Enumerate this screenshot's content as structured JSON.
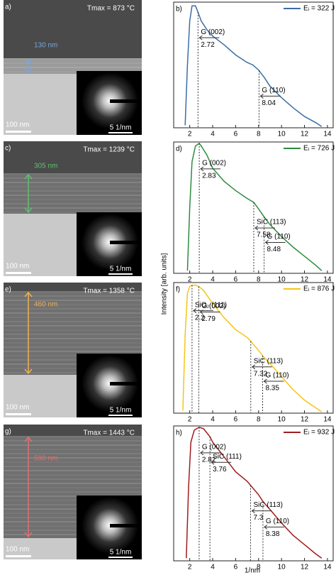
{
  "chart_data": [
    {
      "type": "line",
      "letter": "b)",
      "xlim": [
        0.6,
        14.5
      ],
      "ylim": [
        0,
        1
      ],
      "xticks": [
        2,
        4,
        6,
        8,
        10,
        12,
        14
      ],
      "x": [
        1.6,
        1.8,
        2.0,
        2.2,
        2.5,
        2.72,
        3,
        3.5,
        4,
        5,
        6,
        7,
        7.5,
        8,
        8.5,
        9,
        10,
        11,
        12,
        13,
        13.5
      ],
      "series": [
        {
          "name": "Eᵢ = 322 J",
          "color": "#3a6ea5",
          "values": [
            0.02,
            0.5,
            0.85,
            0.97,
            0.97,
            0.92,
            0.85,
            0.78,
            0.73,
            0.66,
            0.58,
            0.52,
            0.5,
            0.46,
            0.4,
            0.33,
            0.24,
            0.16,
            0.09,
            0.04,
            0.01
          ]
        }
      ],
      "annotations": [
        {
          "label": "G (002)",
          "x": 2.72
        },
        {
          "label": "G (110)",
          "x": 8.04
        }
      ]
    },
    {
      "type": "line",
      "letter": "d)",
      "xlim": [
        0.6,
        14.5
      ],
      "ylim": [
        0,
        1
      ],
      "xticks": [
        2,
        4,
        6,
        8,
        10,
        12,
        14
      ],
      "x": [
        1.8,
        2.0,
        2.2,
        2.5,
        2.83,
        3,
        3.5,
        4,
        5,
        6,
        7,
        7.58,
        8,
        8.48,
        9,
        10,
        11,
        12,
        13,
        13.5
      ],
      "series": [
        {
          "name": "Eᵢ = 726 J",
          "color": "#2e8b3e",
          "values": [
            0.02,
            0.5,
            0.85,
            0.97,
            0.99,
            0.97,
            0.9,
            0.8,
            0.7,
            0.63,
            0.57,
            0.54,
            0.49,
            0.43,
            0.37,
            0.28,
            0.2,
            0.13,
            0.06,
            0.02
          ]
        }
      ],
      "annotations": [
        {
          "label": "G (002)",
          "x": 2.83
        },
        {
          "label": "SiC (113)",
          "x": 7.58
        },
        {
          "label": "G (110)",
          "x": 8.48
        }
      ]
    },
    {
      "type": "line",
      "letter": "f)",
      "xlim": [
        0.6,
        14.5
      ],
      "ylim": [
        0,
        1
      ],
      "xticks": [
        2,
        4,
        6,
        8,
        10,
        12,
        14
      ],
      "x": [
        1.4,
        1.6,
        1.8,
        2.0,
        2.2,
        2.5,
        2.79,
        3.2,
        4,
        5,
        6,
        7,
        7.32,
        8,
        8.35,
        9,
        10,
        11,
        12,
        13,
        13.5
      ],
      "series": [
        {
          "name": "Eᵢ = 876 J",
          "color": "#f5c518",
          "values": [
            0.02,
            0.6,
            0.92,
            0.97,
            0.98,
            0.98,
            0.97,
            0.94,
            0.84,
            0.73,
            0.64,
            0.58,
            0.55,
            0.48,
            0.44,
            0.38,
            0.28,
            0.18,
            0.1,
            0.04,
            0.01
          ]
        }
      ],
      "annotations": [
        {
          "label": "SiO₂ (111)",
          "x": 2.2
        },
        {
          "label": "G (002)",
          "x": 2.79
        },
        {
          "label": "SiC (113)",
          "x": 7.32
        },
        {
          "label": "G (110)",
          "x": 8.35
        }
      ]
    },
    {
      "type": "line",
      "letter": "h)",
      "xlim": [
        0.6,
        14.5
      ],
      "ylim": [
        0,
        1
      ],
      "xticks": [
        2,
        4,
        6,
        8,
        10,
        12,
        14
      ],
      "x": [
        1.7,
        1.9,
        2.1,
        2.4,
        2.82,
        3.2,
        3.76,
        4,
        5,
        6,
        7,
        7.3,
        8,
        8.38,
        9,
        10,
        11,
        12,
        13,
        13.5
      ],
      "series": [
        {
          "name": "Eᵢ = 932 J",
          "color": "#a01c1c",
          "values": [
            0.02,
            0.55,
            0.88,
            0.97,
            0.99,
            0.98,
            0.92,
            0.88,
            0.77,
            0.66,
            0.59,
            0.56,
            0.49,
            0.44,
            0.38,
            0.28,
            0.19,
            0.12,
            0.05,
            0.02
          ]
        }
      ],
      "annotations": [
        {
          "label": "G (002)",
          "x": 2.82
        },
        {
          "label": "SiC (111)",
          "x": 3.76
        },
        {
          "label": "SiC (113)",
          "x": 7.3
        },
        {
          "label": "G (110)",
          "x": 8.38
        }
      ]
    }
  ],
  "y_label": "Intensity [arb. units]",
  "x_label": "1/nm",
  "panels": [
    {
      "letter": "a)",
      "temperature": "Tmax = 873 °C",
      "thickness": "130 nm",
      "scale": "100 nm",
      "diffraction_scale": "5 1/nm"
    },
    {
      "letter": "c)",
      "temperature": "Tmax = 1239 °C",
      "thickness": "305 nm",
      "scale": "100 nm",
      "diffraction_scale": "5 1/nm"
    },
    {
      "letter": "e)",
      "temperature": "Tmax = 1358 °C",
      "thickness": "460 nm",
      "scale": "100 nm",
      "diffraction_scale": "5 1/nm"
    },
    {
      "letter": "g)",
      "temperature": "Tmax = 1443 °C",
      "thickness": "590 nm",
      "scale": "100 nm",
      "diffraction_scale": "5 1/nm"
    }
  ]
}
